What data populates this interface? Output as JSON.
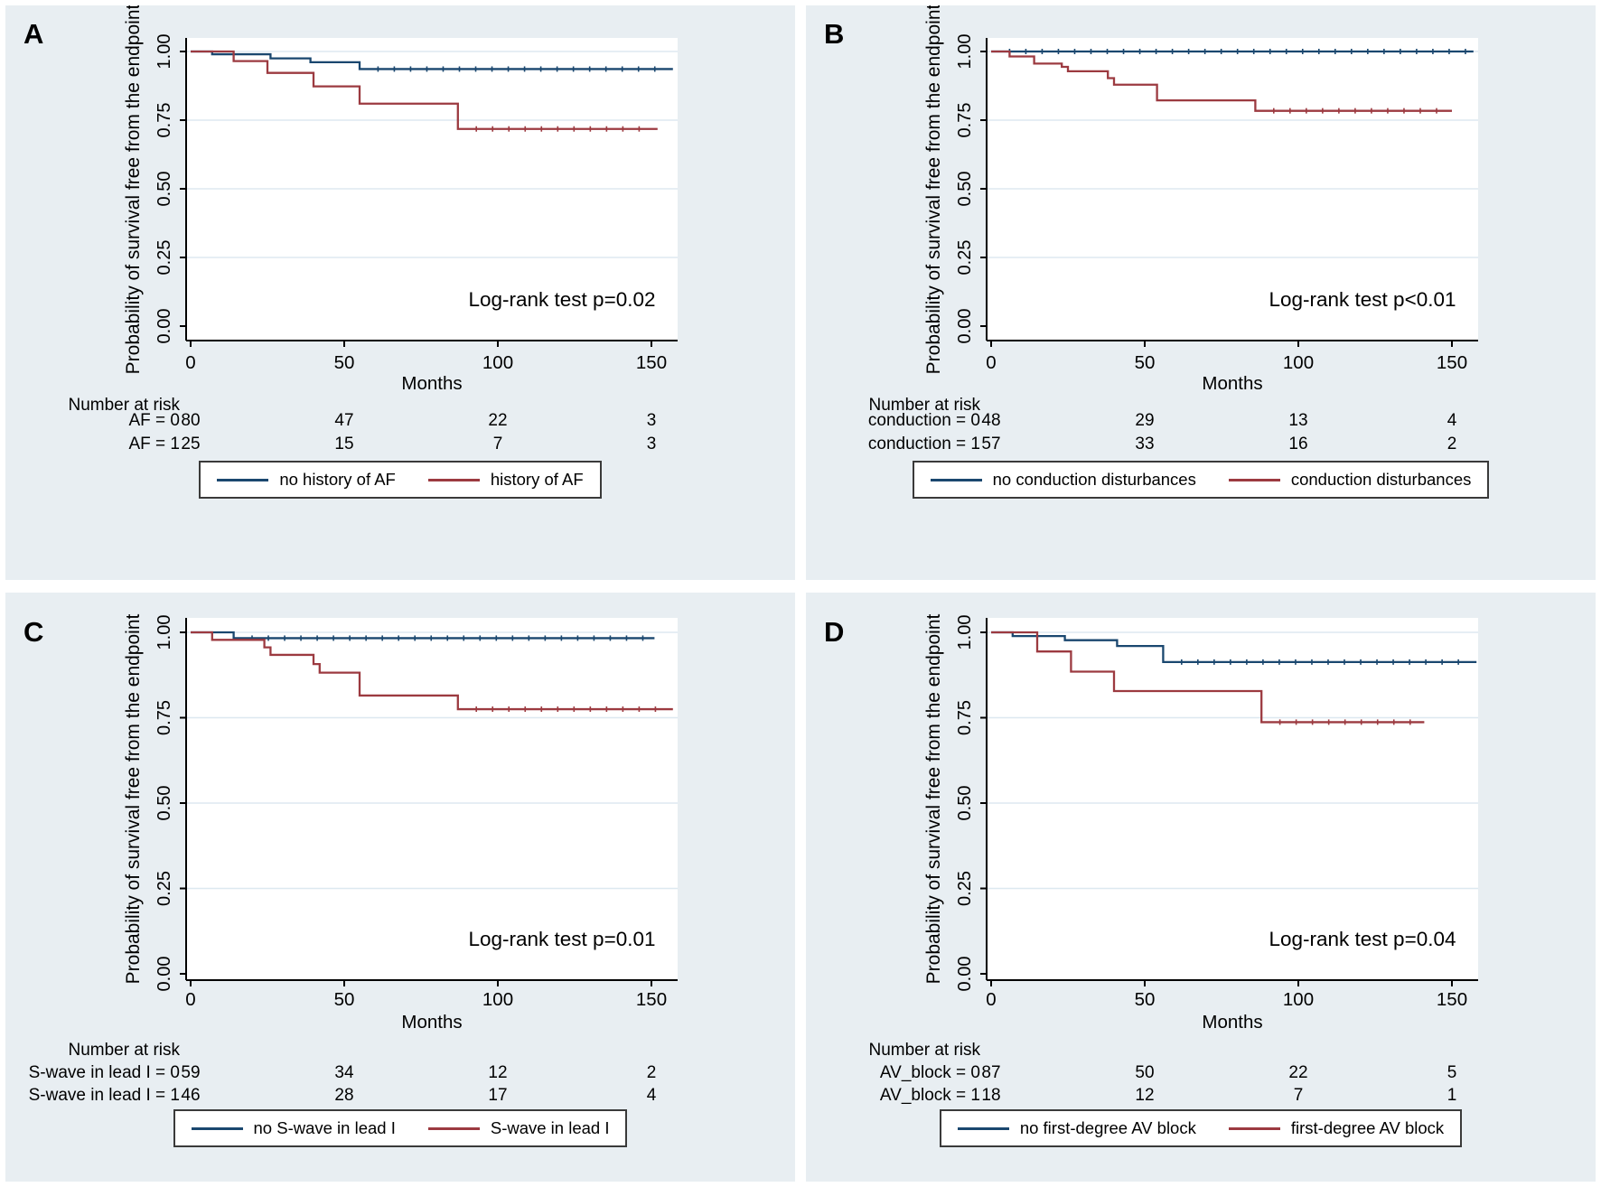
{
  "figure": {
    "background_color": "#e8eef2",
    "plot_background": "#ffffff",
    "gridline_color": "#dde8f0",
    "axis_color": "#000000",
    "navy": "#1a476f",
    "maroon": "#9c3a40"
  },
  "chart_data": [
    {
      "panel": "A",
      "type": "line",
      "subtype": "kaplan-meier-step",
      "xlabel": "Months",
      "ylabel": "Probability of survival free from the endpoint",
      "annotation": "Log-rank test p=0.02",
      "xticks": [
        0,
        50,
        100,
        150
      ],
      "xlim": [
        0,
        158
      ],
      "ytick_labels": [
        "0.00",
        "0.25",
        "0.50",
        "0.75",
        "1.00"
      ],
      "yticks": [
        0,
        0.25,
        0.5,
        0.75,
        1.0
      ],
      "ylim": [
        0,
        1.0
      ],
      "grid": true,
      "series": [
        {
          "name": "no history of AF",
          "color_key": "navy",
          "end": 157,
          "steps": [
            [
              0,
              1.0
            ],
            [
              7,
              0.99
            ],
            [
              26,
              0.975
            ],
            [
              39,
              0.961
            ],
            [
              55,
              0.936
            ]
          ]
        },
        {
          "name": "history of AF",
          "color_key": "maroon",
          "end": 152,
          "steps": [
            [
              0,
              1.0
            ],
            [
              14,
              0.965
            ],
            [
              25,
              0.922
            ],
            [
              40,
              0.873
            ],
            [
              55,
              0.81
            ],
            [
              87,
              0.718
            ]
          ]
        }
      ],
      "risk_table": {
        "title": "Number at risk",
        "columns_months": [
          0,
          50,
          100,
          150
        ],
        "rows": [
          {
            "label": "AF = 0",
            "values": [
              "80",
              "47",
              "22",
              "3"
            ]
          },
          {
            "label": "AF = 1",
            "values": [
              "25",
              "15",
              "7",
              "3"
            ]
          }
        ]
      },
      "legend": [
        {
          "label": "no history of AF",
          "color_key": "navy"
        },
        {
          "label": "history of AF",
          "color_key": "maroon"
        }
      ]
    },
    {
      "panel": "B",
      "type": "line",
      "subtype": "kaplan-meier-step",
      "xlabel": "Months",
      "ylabel": "Probability of survival free from the endpoint",
      "annotation": "Log-rank test p<0.01",
      "xticks": [
        0,
        50,
        100,
        150
      ],
      "xlim": [
        0,
        158
      ],
      "ytick_labels": [
        "0.00",
        "0.25",
        "0.50",
        "0.75",
        "1.00"
      ],
      "yticks": [
        0,
        0.25,
        0.5,
        0.75,
        1.0
      ],
      "ylim": [
        0,
        1.0
      ],
      "grid": true,
      "series": [
        {
          "name": "no conduction disturbances",
          "color_key": "navy",
          "end": 157,
          "steps": [
            [
              0,
              1.0
            ]
          ]
        },
        {
          "name": "conduction disturbances",
          "color_key": "maroon",
          "end": 150,
          "steps": [
            [
              0,
              1.0
            ],
            [
              6,
              0.982
            ],
            [
              14,
              0.956
            ],
            [
              23,
              0.944
            ],
            [
              25,
              0.928
            ],
            [
              38,
              0.903
            ],
            [
              40,
              0.879
            ],
            [
              54,
              0.822
            ],
            [
              86,
              0.784
            ]
          ]
        }
      ],
      "risk_table": {
        "title": "Number at risk",
        "columns_months": [
          0,
          50,
          100,
          150
        ],
        "rows": [
          {
            "label": "conduction = 0",
            "values": [
              "48",
              "29",
              "13",
              "4"
            ]
          },
          {
            "label": "conduction = 1",
            "values": [
              "57",
              "33",
              "16",
              "2"
            ]
          }
        ]
      },
      "legend": [
        {
          "label": "no conduction disturbances",
          "color_key": "navy"
        },
        {
          "label": "conduction disturbances",
          "color_key": "maroon"
        }
      ]
    },
    {
      "panel": "C",
      "type": "line",
      "subtype": "kaplan-meier-step",
      "xlabel": "Months",
      "ylabel": "Probability of survival free from the endpoint",
      "annotation": "Log-rank test p=0.01",
      "xticks": [
        0,
        50,
        100,
        150
      ],
      "xlim": [
        0,
        158
      ],
      "ytick_labels": [
        "0.00",
        "0.25",
        "0.50",
        "0.75",
        "1.00"
      ],
      "yticks": [
        0,
        0.25,
        0.5,
        0.75,
        1.0
      ],
      "ylim": [
        0,
        1.0
      ],
      "grid": true,
      "series": [
        {
          "name": "no S-wave in lead I",
          "color_key": "navy",
          "end": 151,
          "steps": [
            [
              0,
              1.0
            ],
            [
              14,
              0.983
            ]
          ]
        },
        {
          "name": "S-wave in lead I",
          "color_key": "maroon",
          "end": 157,
          "steps": [
            [
              0,
              1.0
            ],
            [
              7,
              0.978
            ],
            [
              24,
              0.956
            ],
            [
              26,
              0.934
            ],
            [
              40,
              0.907
            ],
            [
              42,
              0.882
            ],
            [
              55,
              0.815
            ],
            [
              87,
              0.775
            ]
          ]
        }
      ],
      "risk_table": {
        "title": "Number at risk",
        "columns_months": [
          0,
          50,
          100,
          150
        ],
        "rows": [
          {
            "label": "S-wave in lead I = 0",
            "values": [
              "59",
              "34",
              "12",
              "2"
            ]
          },
          {
            "label": "S-wave in lead I = 1",
            "values": [
              "46",
              "28",
              "17",
              "4"
            ]
          }
        ]
      },
      "legend": [
        {
          "label": "no S-wave in lead I",
          "color_key": "navy"
        },
        {
          "label": "S-wave in lead I",
          "color_key": "maroon"
        }
      ]
    },
    {
      "panel": "D",
      "type": "line",
      "subtype": "kaplan-meier-step",
      "xlabel": "Months",
      "ylabel": "Probability of survival free from the endpoint",
      "annotation": "Log-rank test p=0.04",
      "xticks": [
        0,
        50,
        100,
        150
      ],
      "xlim": [
        0,
        158
      ],
      "ytick_labels": [
        "0.00",
        "0.25",
        "0.50",
        "0.75",
        "1.00"
      ],
      "yticks": [
        0,
        0.25,
        0.5,
        0.75,
        1.0
      ],
      "ylim": [
        0,
        1.0
      ],
      "grid": true,
      "series": [
        {
          "name": "no first-degree AV block",
          "color_key": "navy",
          "end": 158,
          "steps": [
            [
              0,
              1.0
            ],
            [
              7,
              0.989
            ],
            [
              24,
              0.977
            ],
            [
              41,
              0.96
            ],
            [
              56,
              0.913
            ]
          ]
        },
        {
          "name": "first-degree AV block",
          "color_key": "maroon",
          "end": 141,
          "steps": [
            [
              0,
              1.0
            ],
            [
              15,
              0.944
            ],
            [
              26,
              0.885
            ],
            [
              40,
              0.828
            ],
            [
              88,
              0.737
            ]
          ]
        }
      ],
      "risk_table": {
        "title": "Number at risk",
        "columns_months": [
          0,
          50,
          100,
          150
        ],
        "rows": [
          {
            "label": "AV_block = 0",
            "values": [
              "87",
              "50",
              "22",
              "5"
            ]
          },
          {
            "label": "AV_block = 1",
            "values": [
              "18",
              "12",
              "7",
              "1"
            ]
          }
        ]
      },
      "legend": [
        {
          "label": "no first-degree AV block",
          "color_key": "navy"
        },
        {
          "label": "first-degree AV block",
          "color_key": "maroon"
        }
      ]
    }
  ]
}
